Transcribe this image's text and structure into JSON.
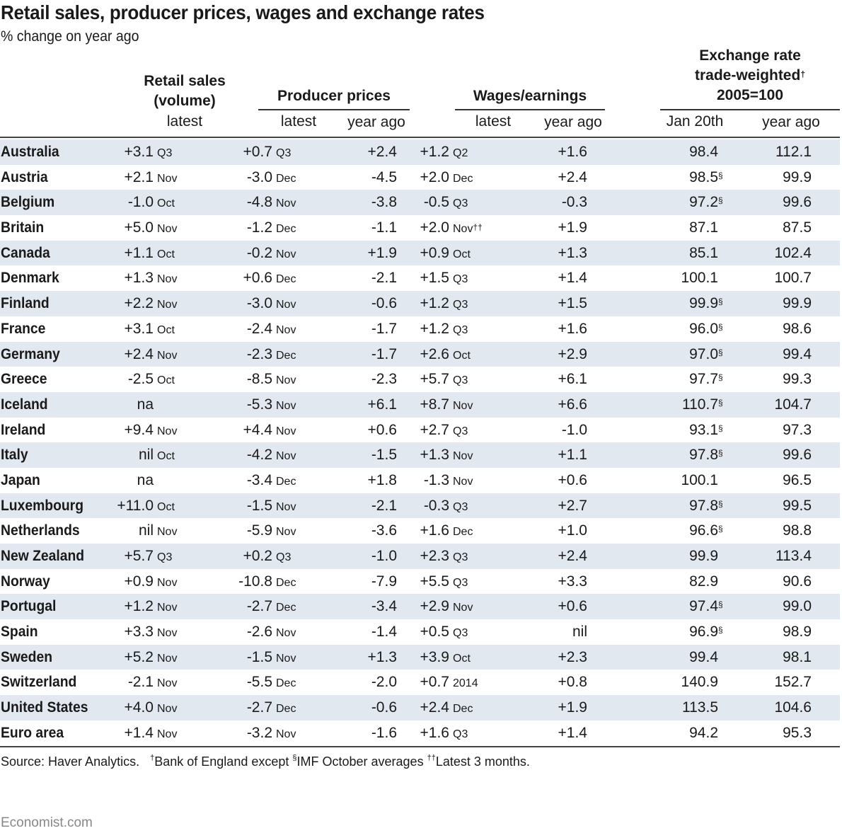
{
  "chart_data": {
    "type": "table",
    "title": "Retail sales, producer prices, wages and exchange rates",
    "subtitle": "% change on year ago",
    "column_groups": [
      {
        "label_lines": [
          "Retail sales",
          "(volume)"
        ],
        "columns": [
          "latest"
        ]
      },
      {
        "label_lines": [
          "Producer prices"
        ],
        "columns": [
          "latest",
          "year ago"
        ]
      },
      {
        "label_lines": [
          "Wages/earnings"
        ],
        "columns": [
          "latest",
          "year ago"
        ]
      },
      {
        "label_lines": [
          "Exchange rate",
          "trade-weighted",
          "2005=100"
        ],
        "label_footnote": "†",
        "columns": [
          "Jan 20th",
          "year ago"
        ]
      }
    ],
    "rows": [
      {
        "country": "Australia",
        "retail": "+3.1",
        "retail_period": "Q3",
        "pp_latest": "+0.7",
        "pp_period": "Q3",
        "pp_year_ago": "+2.4",
        "wages_latest": "+1.2",
        "wages_period": "Q2",
        "wages_fn": "",
        "wages_year_ago": "+1.6",
        "fx_latest": "98.4",
        "fx_fn": "",
        "fx_year_ago": "112.1"
      },
      {
        "country": "Austria",
        "retail": "+2.1",
        "retail_period": "Nov",
        "pp_latest": "-3.0",
        "pp_period": "Dec",
        "pp_year_ago": "-4.5",
        "wages_latest": "+2.0",
        "wages_period": "Dec",
        "wages_fn": "",
        "wages_year_ago": "+2.4",
        "fx_latest": "98.5",
        "fx_fn": "§",
        "fx_year_ago": "99.9"
      },
      {
        "country": "Belgium",
        "retail": "-1.0",
        "retail_period": "Oct",
        "pp_latest": "-4.8",
        "pp_period": "Nov",
        "pp_year_ago": "-3.8",
        "wages_latest": "-0.5",
        "wages_period": "Q3",
        "wages_fn": "",
        "wages_year_ago": "-0.3",
        "fx_latest": "97.2",
        "fx_fn": "§",
        "fx_year_ago": "99.6"
      },
      {
        "country": "Britain",
        "retail": "+5.0",
        "retail_period": "Nov",
        "pp_latest": "-1.2",
        "pp_period": "Dec",
        "pp_year_ago": "-1.1",
        "wages_latest": "+2.0",
        "wages_period": "Nov",
        "wages_fn": "††",
        "wages_year_ago": "+1.9",
        "fx_latest": "87.1",
        "fx_fn": "",
        "fx_year_ago": "87.5"
      },
      {
        "country": "Canada",
        "retail": "+1.1",
        "retail_period": "Oct",
        "pp_latest": "-0.2",
        "pp_period": "Nov",
        "pp_year_ago": "+1.9",
        "wages_latest": "+0.9",
        "wages_period": "Oct",
        "wages_fn": "",
        "wages_year_ago": "+1.3",
        "fx_latest": "85.1",
        "fx_fn": "",
        "fx_year_ago": "102.4"
      },
      {
        "country": "Denmark",
        "retail": "+1.3",
        "retail_period": "Nov",
        "pp_latest": "+0.6",
        "pp_period": "Dec",
        "pp_year_ago": "-2.1",
        "wages_latest": "+1.5",
        "wages_period": "Q3",
        "wages_fn": "",
        "wages_year_ago": "+1.4",
        "fx_latest": "100.1",
        "fx_fn": "",
        "fx_year_ago": "100.7"
      },
      {
        "country": "Finland",
        "retail": "+2.2",
        "retail_period": "Nov",
        "pp_latest": "-3.0",
        "pp_period": "Nov",
        "pp_year_ago": "-0.6",
        "wages_latest": "+1.2",
        "wages_period": "Q3",
        "wages_fn": "",
        "wages_year_ago": "+1.5",
        "fx_latest": "99.9",
        "fx_fn": "§",
        "fx_year_ago": "99.9"
      },
      {
        "country": "France",
        "retail": "+3.1",
        "retail_period": "Oct",
        "pp_latest": "-2.4",
        "pp_period": "Nov",
        "pp_year_ago": "-1.7",
        "wages_latest": "+1.2",
        "wages_period": "Q3",
        "wages_fn": "",
        "wages_year_ago": "+1.6",
        "fx_latest": "96.0",
        "fx_fn": "§",
        "fx_year_ago": "98.6"
      },
      {
        "country": "Germany",
        "retail": "+2.4",
        "retail_period": "Nov",
        "pp_latest": "-2.3",
        "pp_period": "Dec",
        "pp_year_ago": "-1.7",
        "wages_latest": "+2.6",
        "wages_period": "Oct",
        "wages_fn": "",
        "wages_year_ago": "+2.9",
        "fx_latest": "97.0",
        "fx_fn": "§",
        "fx_year_ago": "99.4"
      },
      {
        "country": "Greece",
        "retail": "-2.5",
        "retail_period": "Oct",
        "pp_latest": "-8.5",
        "pp_period": "Nov",
        "pp_year_ago": "-2.3",
        "wages_latest": "+5.7",
        "wages_period": "Q3",
        "wages_fn": "",
        "wages_year_ago": "+6.1",
        "fx_latest": "97.7",
        "fx_fn": "§",
        "fx_year_ago": "99.3"
      },
      {
        "country": "Iceland",
        "retail": "na",
        "retail_period": "",
        "pp_latest": "-5.3",
        "pp_period": "Nov",
        "pp_year_ago": "+6.1",
        "wages_latest": "+8.7",
        "wages_period": "Nov",
        "wages_fn": "",
        "wages_year_ago": "+6.6",
        "fx_latest": "110.7",
        "fx_fn": "§",
        "fx_year_ago": "104.7"
      },
      {
        "country": "Ireland",
        "retail": "+9.4",
        "retail_period": "Nov",
        "pp_latest": "+4.4",
        "pp_period": "Nov",
        "pp_year_ago": "+0.6",
        "wages_latest": "+2.7",
        "wages_period": "Q3",
        "wages_fn": "",
        "wages_year_ago": "-1.0",
        "fx_latest": "93.1",
        "fx_fn": "§",
        "fx_year_ago": "97.3"
      },
      {
        "country": "Italy",
        "retail": "nil",
        "retail_period": "Oct",
        "pp_latest": "-4.2",
        "pp_period": "Nov",
        "pp_year_ago": "-1.5",
        "wages_latest": "+1.3",
        "wages_period": "Nov",
        "wages_fn": "",
        "wages_year_ago": "+1.1",
        "fx_latest": "97.8",
        "fx_fn": "§",
        "fx_year_ago": "99.6"
      },
      {
        "country": "Japan",
        "retail": "na",
        "retail_period": "",
        "pp_latest": "-3.4",
        "pp_period": "Dec",
        "pp_year_ago": "+1.8",
        "wages_latest": "-1.3",
        "wages_period": "Nov",
        "wages_fn": "",
        "wages_year_ago": "+0.6",
        "fx_latest": "100.1",
        "fx_fn": "",
        "fx_year_ago": "96.5"
      },
      {
        "country": "Luxembourg",
        "retail": "+11.0",
        "retail_period": "Oct",
        "pp_latest": "-1.5",
        "pp_period": "Nov",
        "pp_year_ago": "-2.1",
        "wages_latest": "-0.3",
        "wages_period": "Q3",
        "wages_fn": "",
        "wages_year_ago": "+2.7",
        "fx_latest": "97.8",
        "fx_fn": "§",
        "fx_year_ago": "99.5"
      },
      {
        "country": "Netherlands",
        "retail": "nil",
        "retail_period": "Nov",
        "pp_latest": "-5.9",
        "pp_period": "Nov",
        "pp_year_ago": "-3.6",
        "wages_latest": "+1.6",
        "wages_period": "Dec",
        "wages_fn": "",
        "wages_year_ago": "+1.0",
        "fx_latest": "96.6",
        "fx_fn": "§",
        "fx_year_ago": "98.8"
      },
      {
        "country": "New Zealand",
        "retail": "+5.7",
        "retail_period": "Q3",
        "pp_latest": "+0.2",
        "pp_period": "Q3",
        "pp_year_ago": "-1.0",
        "wages_latest": "+2.3",
        "wages_period": "Q3",
        "wages_fn": "",
        "wages_year_ago": "+2.4",
        "fx_latest": "99.9",
        "fx_fn": "",
        "fx_year_ago": "113.4"
      },
      {
        "country": "Norway",
        "retail": "+0.9",
        "retail_period": "Nov",
        "pp_latest": "-10.8",
        "pp_period": "Dec",
        "pp_year_ago": "-7.9",
        "wages_latest": "+5.5",
        "wages_period": "Q3",
        "wages_fn": "",
        "wages_year_ago": "+3.3",
        "fx_latest": "82.9",
        "fx_fn": "",
        "fx_year_ago": "90.6"
      },
      {
        "country": "Portugal",
        "retail": "+1.2",
        "retail_period": "Nov",
        "pp_latest": "-2.7",
        "pp_period": "Dec",
        "pp_year_ago": "-3.4",
        "wages_latest": "+2.9",
        "wages_period": "Nov",
        "wages_fn": "",
        "wages_year_ago": "+0.6",
        "fx_latest": "97.4",
        "fx_fn": "§",
        "fx_year_ago": "99.0"
      },
      {
        "country": "Spain",
        "retail": "+3.3",
        "retail_period": "Nov",
        "pp_latest": "-2.6",
        "pp_period": "Nov",
        "pp_year_ago": "-1.4",
        "wages_latest": "+0.5",
        "wages_period": "Q3",
        "wages_fn": "",
        "wages_year_ago": "nil",
        "fx_latest": "96.9",
        "fx_fn": "§",
        "fx_year_ago": "98.9"
      },
      {
        "country": "Sweden",
        "retail": "+5.2",
        "retail_period": "Nov",
        "pp_latest": "-1.5",
        "pp_period": "Nov",
        "pp_year_ago": "+1.3",
        "wages_latest": "+3.9",
        "wages_period": "Oct",
        "wages_fn": "",
        "wages_year_ago": "+2.3",
        "fx_latest": "99.4",
        "fx_fn": "",
        "fx_year_ago": "98.1"
      },
      {
        "country": "Switzerland",
        "retail": "-2.1",
        "retail_period": "Nov",
        "pp_latest": "-5.5",
        "pp_period": "Dec",
        "pp_year_ago": "-2.0",
        "wages_latest": "+0.7",
        "wages_period": "2014",
        "wages_fn": "",
        "wages_year_ago": "+0.8",
        "fx_latest": "140.9",
        "fx_fn": "",
        "fx_year_ago": "152.7"
      },
      {
        "country": "United States",
        "retail": "+4.0",
        "retail_period": "Nov",
        "pp_latest": "-2.7",
        "pp_period": "Dec",
        "pp_year_ago": "-0.6",
        "wages_latest": "+2.4",
        "wages_period": "Dec",
        "wages_fn": "",
        "wages_year_ago": "+1.9",
        "fx_latest": "113.5",
        "fx_fn": "",
        "fx_year_ago": "104.6"
      },
      {
        "country": "Euro area",
        "retail": "+1.4",
        "retail_period": "Nov",
        "pp_latest": "-3.2",
        "pp_period": "Nov",
        "pp_year_ago": "-1.6",
        "wages_latest": "+1.6",
        "wages_period": "Q3",
        "wages_fn": "",
        "wages_year_ago": "+1.4",
        "fx_latest": "94.2",
        "fx_fn": "",
        "fx_year_ago": "95.3"
      }
    ],
    "footnotes": [
      {
        "mark": "",
        "text": "Source: Haver Analytics."
      },
      {
        "mark": "†",
        "text": "Bank of England except "
      },
      {
        "mark": "§",
        "text": "IMF October averages "
      },
      {
        "mark": "††",
        "text": "Latest 3 months."
      }
    ],
    "brand": "Economist.com"
  },
  "colors": {
    "row_shade": "#e1e8ef",
    "text": "#1a1a1a",
    "brand_text": "#888888"
  }
}
